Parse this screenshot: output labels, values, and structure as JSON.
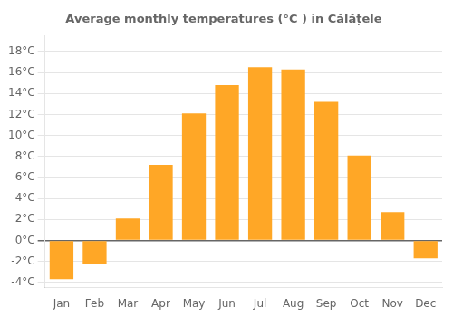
{
  "chart_data": {
    "type": "bar",
    "title": "Average monthly temperatures (°C ) in Călățele",
    "categories": [
      "Jan",
      "Feb",
      "Mar",
      "Apr",
      "May",
      "Jun",
      "Jul",
      "Aug",
      "Sep",
      "Oct",
      "Nov",
      "Dec"
    ],
    "values": [
      -3.7,
      -2.2,
      2.1,
      7.2,
      12.1,
      14.8,
      16.5,
      16.3,
      13.2,
      8.1,
      2.7,
      -1.7
    ],
    "color": "#FFA726",
    "ylim": [
      -4.5,
      19.5
    ],
    "yticks": [
      {
        "value": -4,
        "label": "-4°C"
      },
      {
        "value": -2,
        "label": "-2°C"
      },
      {
        "value": 0,
        "label": "0°C"
      },
      {
        "value": 2,
        "label": "2°C"
      },
      {
        "value": 4,
        "label": "4°C"
      },
      {
        "value": 6,
        "label": "6°C"
      },
      {
        "value": 8,
        "label": "8°C"
      },
      {
        "value": 10,
        "label": "10°C"
      },
      {
        "value": 12,
        "label": "12°C"
      },
      {
        "value": 14,
        "label": "14°C"
      },
      {
        "value": 16,
        "label": "16°C"
      },
      {
        "value": 18,
        "label": "18°C"
      }
    ],
    "grid": true
  }
}
